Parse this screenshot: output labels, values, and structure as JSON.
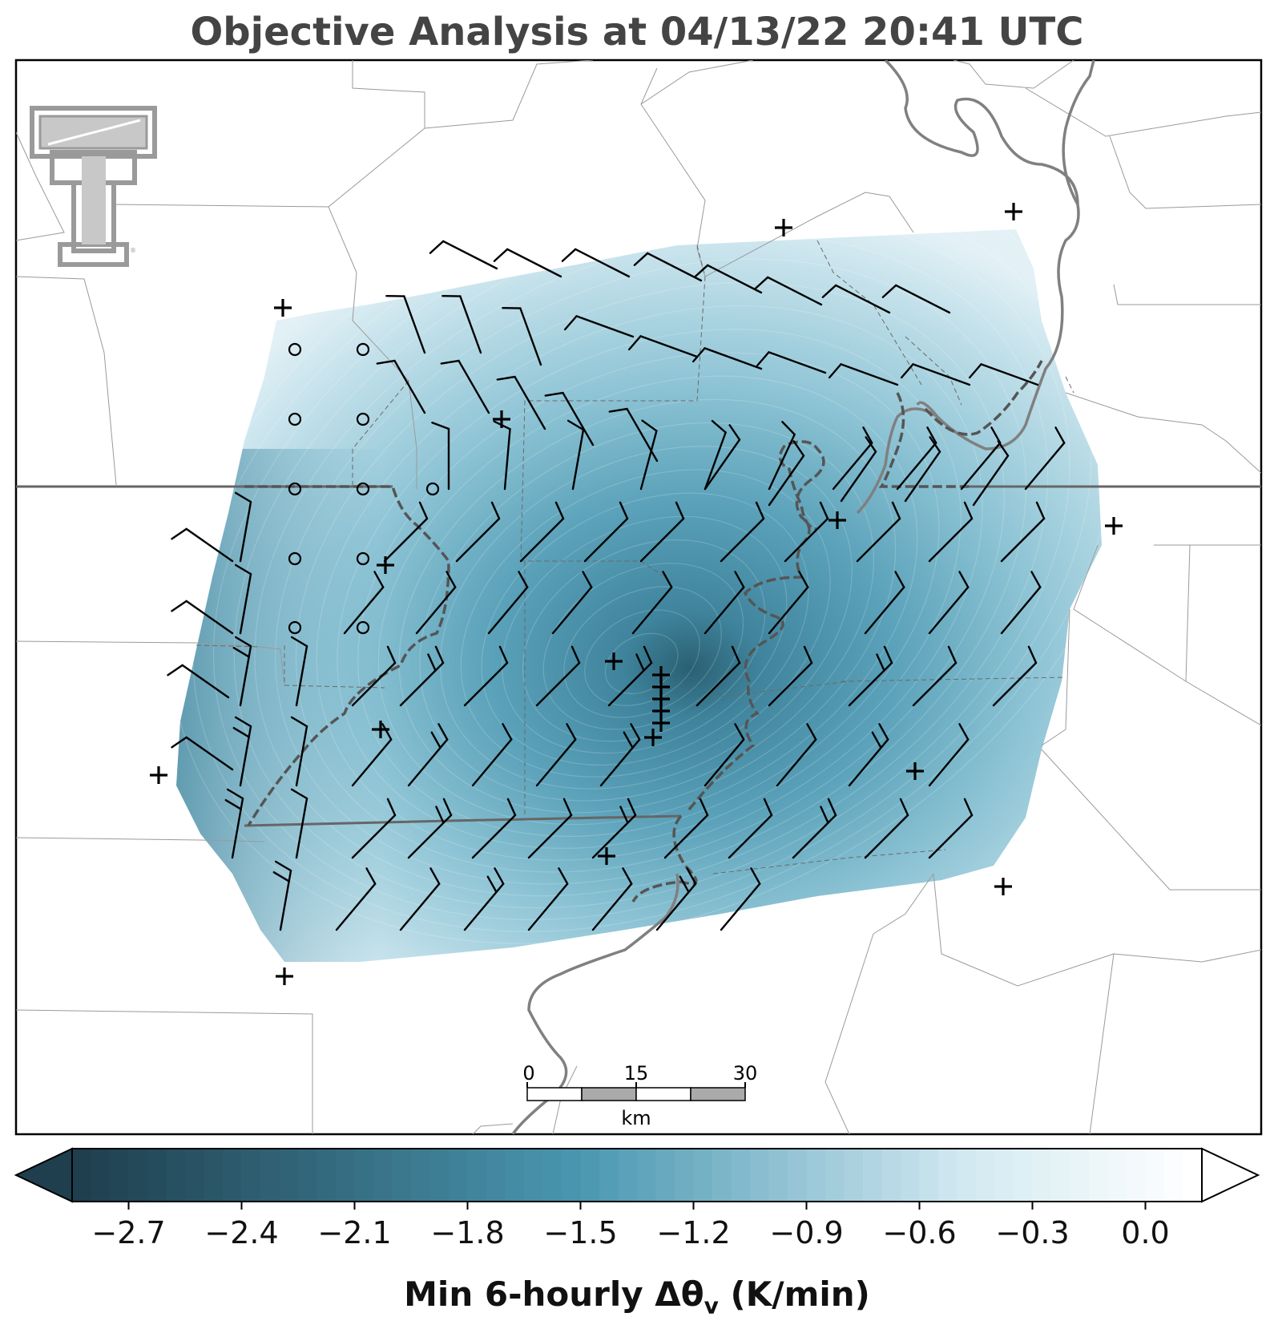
{
  "title": "Objective Analysis at 04/13/22 20:41 UTC",
  "logo": {
    "name": "texas-tech-double-t-logo",
    "color": "#9a9a9a"
  },
  "map": {
    "field_name": "Min 6-hourly Δθv",
    "field_units": "K/min",
    "field_min": -2.9,
    "field_max": 0.15,
    "minimum_center_lonlat": [
      0.545,
      0.565
    ],
    "colors": {
      "dark": "#1f3f4e",
      "mid": "#4a97b1",
      "light": "#d4eaf2",
      "white": "#ffffff",
      "state_border": "#666666",
      "county_border": "#9a9a9a",
      "river": "#808080"
    },
    "station_symbols": [
      "plus",
      "circle",
      "wind-barb"
    ]
  },
  "scalebar": {
    "tick_labels": [
      "0",
      "15",
      "30"
    ],
    "unit": "km"
  },
  "colorbar": {
    "tick_labels": [
      "−2.7",
      "−2.4",
      "−2.1",
      "−1.8",
      "−1.5",
      "−1.2",
      "−0.9",
      "−0.6",
      "−0.3",
      "0.0"
    ],
    "tick_values": [
      -2.7,
      -2.4,
      -2.1,
      -1.8,
      -1.5,
      -1.2,
      -0.9,
      -0.6,
      -0.3,
      0.0
    ],
    "range": [
      -2.85,
      0.15
    ],
    "extend": "both",
    "label_main": "Min 6-hourly Δθ",
    "label_sub": "v",
    "label_units": " (K/min)"
  }
}
